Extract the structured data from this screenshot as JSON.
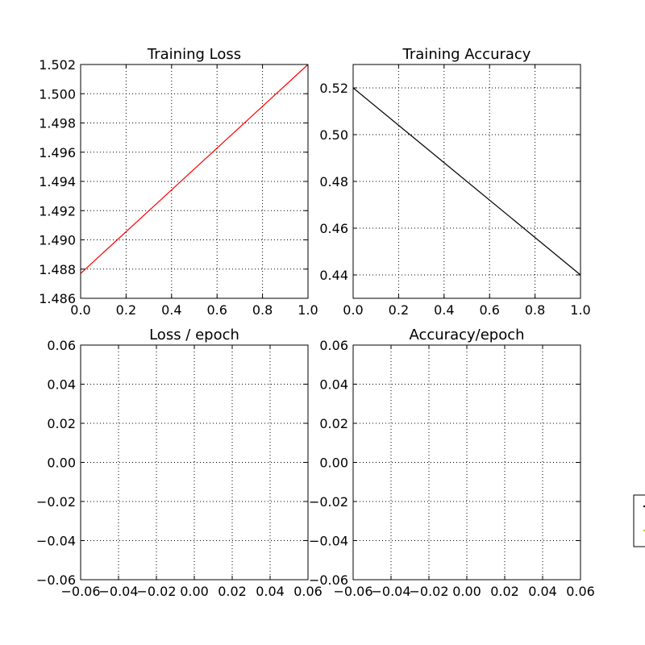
{
  "chart_data": [
    {
      "type": "line",
      "title": "Training Loss",
      "xlabel": "",
      "ylabel": "",
      "xlim": [
        0.0,
        1.0
      ],
      "ylim": [
        1.486,
        1.502
      ],
      "xticks": [
        "0.0",
        "0.2",
        "0.4",
        "0.6",
        "0.8",
        "1.0"
      ],
      "yticks": [
        "1.486",
        "1.488",
        "1.490",
        "1.492",
        "1.494",
        "1.496",
        "1.498",
        "1.500",
        "1.502"
      ],
      "grid": true,
      "series": [
        {
          "color": "#ff0000",
          "x": [
            0.0,
            1.0
          ],
          "y": [
            1.4877,
            1.502
          ]
        }
      ]
    },
    {
      "type": "line",
      "title": "Training Accuracy",
      "xlabel": "",
      "ylabel": "",
      "xlim": [
        0.0,
        1.0
      ],
      "ylim": [
        0.43,
        0.53
      ],
      "xticks": [
        "0.0",
        "0.2",
        "0.4",
        "0.6",
        "0.8",
        "1.0"
      ],
      "yticks": [
        "0.44",
        "0.46",
        "0.48",
        "0.50",
        "0.52"
      ],
      "grid": true,
      "series": [
        {
          "color": "#000000",
          "x": [
            0.0,
            1.0
          ],
          "y": [
            0.52,
            0.44
          ]
        }
      ]
    },
    {
      "type": "line",
      "title": "Loss / epoch",
      "xlabel": "",
      "ylabel": "",
      "xlim": [
        -0.06,
        0.06
      ],
      "ylim": [
        -0.06,
        0.06
      ],
      "xticks": [
        "−0.06",
        "−0.04",
        "−0.02",
        "0.00",
        "0.02",
        "0.04",
        "0.06"
      ],
      "yticks": [
        "−0.06",
        "−0.04",
        "−0.02",
        "0.00",
        "0.02",
        "0.04",
        "0.06"
      ],
      "grid": true,
      "series": []
    },
    {
      "type": "line",
      "title": "Accuracy/epoch",
      "xlabel": "",
      "ylabel": "",
      "xlim": [
        -0.06,
        0.06
      ],
      "ylim": [
        -0.06,
        0.06
      ],
      "xticks": [
        "−0.06",
        "−0.04",
        "−0.02",
        "0.00",
        "0.02",
        "0.04",
        "0.06"
      ],
      "yticks": [
        "−0.06",
        "−0.04",
        "−0.02",
        "0.00",
        "0.02",
        "0.04",
        "0.06"
      ],
      "grid": true,
      "series": []
    }
  ],
  "legend": {
    "placement": "right, partially cut off",
    "entry_colors": [
      "#000000",
      "#cccc00"
    ]
  }
}
